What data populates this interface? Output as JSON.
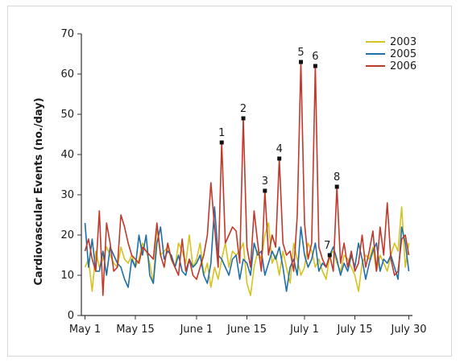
{
  "chart_data": {
    "type": "line",
    "title": "",
    "xlabel": "",
    "ylabel": "Cardiovascular Events (no./day)",
    "ylim": [
      0,
      70
    ],
    "yticks": [
      "0",
      "10",
      "20",
      "30",
      "40",
      "50",
      "60",
      "70"
    ],
    "xtick_labels": [
      "May 1",
      "May 15",
      "June 1",
      "June 15",
      "July 1",
      "July 15",
      "July 30"
    ],
    "xtick_days": [
      1,
      15,
      32,
      46,
      62,
      76,
      91
    ],
    "grid": false,
    "legend_position": "top-right",
    "x_description": "day index, 1 = May 1, 91 = July 30",
    "x": [
      1,
      2,
      3,
      4,
      5,
      6,
      7,
      8,
      9,
      10,
      11,
      12,
      13,
      14,
      15,
      16,
      17,
      18,
      19,
      20,
      21,
      22,
      23,
      24,
      25,
      26,
      27,
      28,
      29,
      30,
      31,
      32,
      33,
      34,
      35,
      36,
      37,
      38,
      39,
      40,
      41,
      42,
      43,
      44,
      45,
      46,
      47,
      48,
      49,
      50,
      51,
      52,
      53,
      54,
      55,
      56,
      57,
      58,
      59,
      60,
      61,
      62,
      63,
      64,
      65,
      66,
      67,
      68,
      69,
      70,
      71,
      72,
      73,
      74,
      75,
      76,
      77,
      78,
      79,
      80,
      81,
      82,
      83,
      84,
      85,
      86,
      87,
      88,
      89,
      90,
      91
    ],
    "series": [
      {
        "name": "2003",
        "color": "#d6c221",
        "values": [
          12,
          14,
          6,
          16,
          12,
          14,
          17,
          15,
          13,
          12,
          17,
          14,
          13,
          15,
          12,
          14,
          18,
          16,
          13,
          8,
          22,
          15,
          16,
          17,
          14,
          12,
          18,
          16,
          13,
          20,
          12,
          14,
          18,
          10,
          13,
          7,
          12,
          9,
          14,
          18,
          12,
          16,
          15,
          16,
          18,
          8,
          5,
          12,
          16,
          14,
          20,
          23,
          13,
          15,
          10,
          16,
          12,
          8,
          18,
          14,
          10,
          12,
          18,
          16,
          12,
          14,
          11,
          9,
          15,
          16,
          13,
          11,
          15,
          14,
          12,
          10,
          6,
          13,
          15,
          14,
          17,
          11,
          15,
          13,
          11,
          15,
          18,
          16,
          27,
          12,
          18
        ]
      },
      {
        "name": "2005",
        "color": "#1f6fa8",
        "values": [
          23,
          12,
          19,
          11,
          11,
          16,
          10,
          17,
          15,
          13,
          12,
          9,
          7,
          14,
          12,
          20,
          15,
          20,
          10,
          8,
          18,
          22,
          14,
          16,
          15,
          12,
          15,
          11,
          10,
          14,
          12,
          13,
          15,
          10,
          8,
          13,
          27,
          15,
          14,
          12,
          10,
          14,
          15,
          9,
          14,
          13,
          10,
          18,
          15,
          16,
          10,
          13,
          16,
          14,
          17,
          12,
          6,
          12,
          14,
          10,
          22,
          15,
          12,
          14,
          18,
          11,
          13,
          12,
          15,
          17,
          14,
          10,
          13,
          11,
          15,
          12,
          18,
          14,
          9,
          13,
          16,
          18,
          11,
          14,
          13,
          15,
          12,
          9,
          22,
          18,
          11
        ]
      },
      {
        "name": "2006",
        "color": "#c0392b",
        "values": [
          16,
          19,
          14,
          11,
          26,
          5,
          23,
          18,
          11,
          12,
          25,
          22,
          18,
          15,
          14,
          13,
          17,
          16,
          15,
          14,
          23,
          15,
          12,
          18,
          14,
          12,
          10,
          19,
          11,
          14,
          10,
          9,
          12,
          15,
          20,
          33,
          22,
          12,
          43,
          18,
          20,
          22,
          21,
          13,
          49,
          17,
          12,
          26,
          18,
          11,
          31,
          15,
          20,
          17,
          39,
          18,
          15,
          16,
          11,
          25,
          63,
          23,
          14,
          18,
          62,
          17,
          14,
          12,
          15,
          11,
          32,
          13,
          18,
          12,
          16,
          11,
          13,
          20,
          12,
          16,
          21,
          11,
          22,
          15,
          28,
          14,
          10,
          11,
          19,
          20,
          15
        ]
      }
    ],
    "markers": [
      {
        "label": "1",
        "x": 39,
        "y": 43
      },
      {
        "label": "2",
        "x": 45,
        "y": 49
      },
      {
        "label": "3",
        "x": 51,
        "y": 31
      },
      {
        "label": "4",
        "x": 55,
        "y": 39
      },
      {
        "label": "5",
        "x": 61,
        "y": 63
      },
      {
        "label": "6",
        "x": 65,
        "y": 62
      },
      {
        "label": "7",
        "x": 69,
        "y": 15
      },
      {
        "label": "8",
        "x": 71,
        "y": 32
      }
    ]
  }
}
